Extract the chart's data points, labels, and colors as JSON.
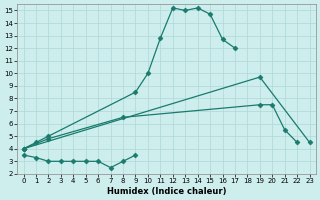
{
  "xlabel": "Humidex (Indice chaleur)",
  "background_color": "#ceeeed",
  "grid_color": "#aed8d5",
  "line_color": "#1a7a6e",
  "xlim": [
    -0.5,
    23.5
  ],
  "ylim": [
    2,
    15.5
  ],
  "xticks": [
    0,
    1,
    2,
    3,
    4,
    5,
    6,
    7,
    8,
    9,
    10,
    11,
    12,
    13,
    14,
    15,
    16,
    17,
    18,
    19,
    20,
    21,
    22,
    23
  ],
  "yticks": [
    2,
    3,
    4,
    5,
    6,
    7,
    8,
    9,
    10,
    11,
    12,
    13,
    14,
    15
  ],
  "line1_x": [
    0,
    1,
    2,
    9,
    10,
    11,
    12,
    13,
    14,
    15,
    16,
    17
  ],
  "line1_y": [
    4.0,
    4.5,
    5.0,
    8.5,
    10.0,
    12.8,
    15.2,
    15.0,
    15.2,
    14.7,
    12.7,
    12.0
  ],
  "line2_x": [
    0,
    2,
    8,
    19,
    20,
    21,
    22
  ],
  "line2_y": [
    4.0,
    4.8,
    6.5,
    7.5,
    7.5,
    5.5,
    4.5
  ],
  "line3_x": [
    0,
    1,
    2,
    3,
    4,
    5,
    6,
    7,
    8,
    9
  ],
  "line3_y": [
    3.5,
    3.3,
    3.0,
    3.0,
    3.0,
    3.0,
    3.0,
    2.5,
    3.0,
    3.5
  ],
  "line4_x": [
    0,
    19,
    23
  ],
  "line4_y": [
    4.0,
    9.7,
    4.5
  ]
}
